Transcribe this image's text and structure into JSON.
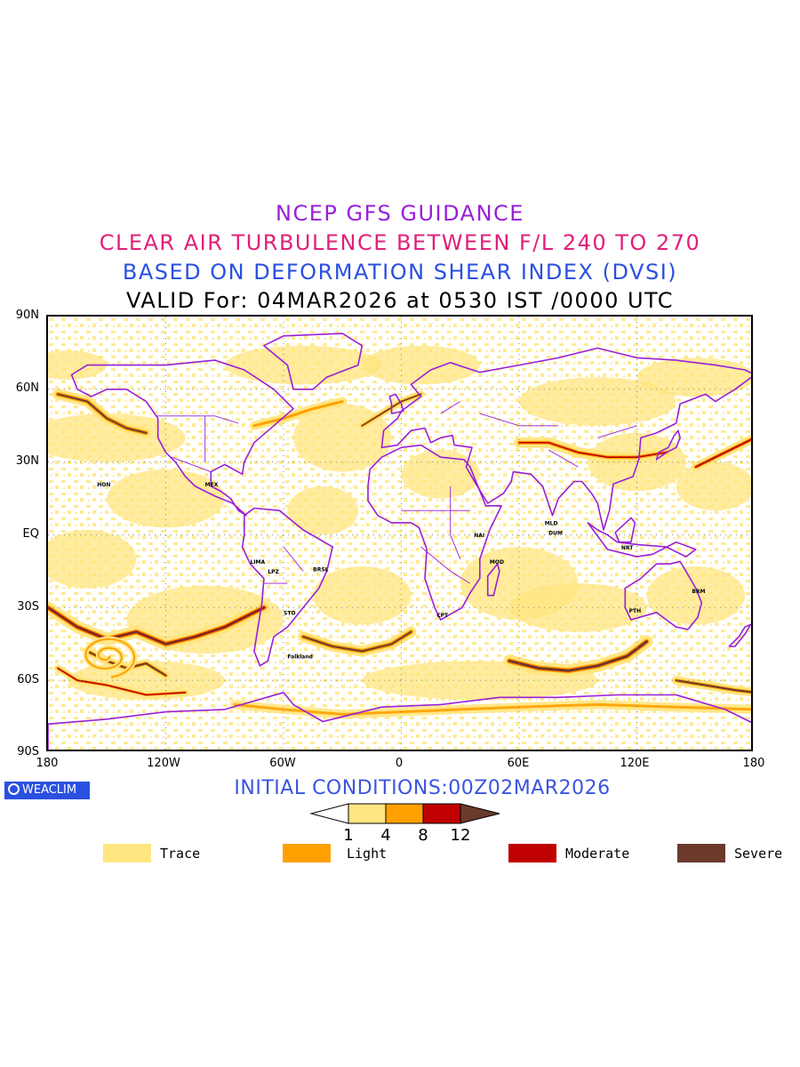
{
  "titles": {
    "line1": "NCEP GFS GUIDANCE",
    "line2": "CLEAR AIR TURBULENCE BETWEEN F/L 240 TO 270",
    "line3": "BASED ON DEFORMATION SHEAR INDEX (DVSI)",
    "line4": "VALID For: 04MAR2026 at 0530 IST /0000 UTC"
  },
  "colors": {
    "line1": "#9a1fd6",
    "line2": "#e0207a",
    "line3": "#2a50e0",
    "line4": "#000000",
    "coast": "#9a1fd6",
    "trace": "#ffe680",
    "light": "#ffa000",
    "moderate": "#c00000",
    "severe": "#6b3a2c",
    "badge": "#2a50e0",
    "init": "#3a55e0"
  },
  "axes": {
    "lat_labels": [
      "90N",
      "60N",
      "30N",
      "EQ",
      "30S",
      "60S",
      "90S"
    ],
    "lon_labels": [
      "180",
      "120W",
      "60W",
      "0",
      "60E",
      "120E",
      "180"
    ],
    "lat_range": [
      -90,
      90
    ],
    "lon_range": [
      -180,
      180
    ],
    "grid": true
  },
  "badge": {
    "text": "WEACLIM"
  },
  "initial_conditions": "INITIAL CONDITIONS:00Z02MAR2026",
  "colorbar": {
    "ticks": [
      "1",
      "4",
      "8",
      "12"
    ],
    "colors": [
      "#ffe680",
      "#ffa000",
      "#c00000",
      "#6b3a2c"
    ]
  },
  "legend": [
    {
      "label": "Trace",
      "color": "#ffe680"
    },
    {
      "label": "Light",
      "color": "#ffa000"
    },
    {
      "label": "Moderate",
      "color": "#c00000"
    },
    {
      "label": "Severe",
      "color": "#6b3a2c"
    }
  ],
  "stations": [
    "HON",
    "MEX",
    "BRSL",
    "LIMA",
    "LPZ",
    "STO",
    "Falkland",
    "CPT",
    "MOD",
    "NAI",
    "DUM",
    "MLD",
    "NRT",
    "PTH",
    "BRM"
  ]
}
